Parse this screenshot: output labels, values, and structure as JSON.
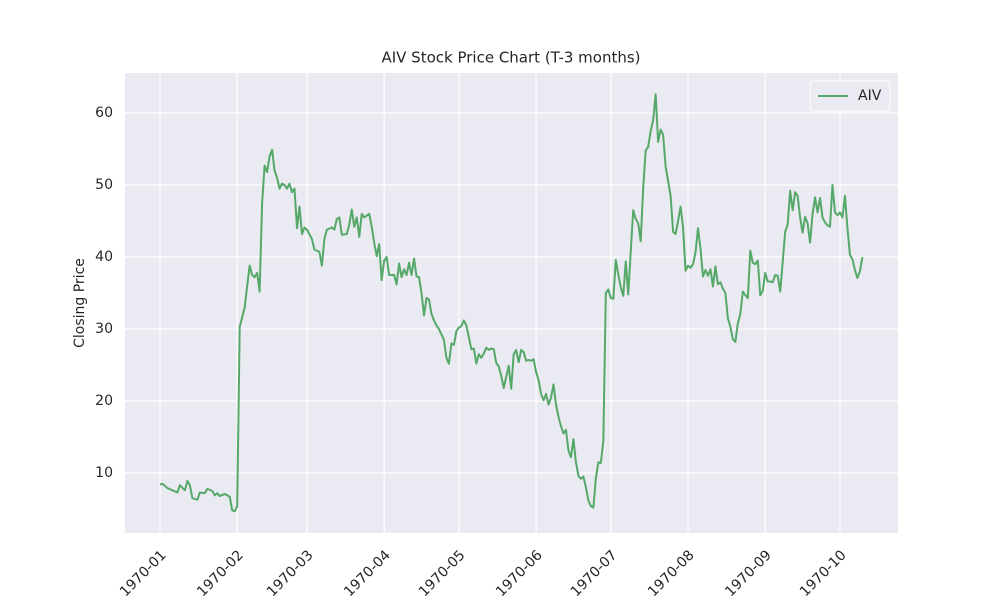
{
  "chart_data": {
    "type": "line",
    "title": "AIV Stock Price Chart (T-3 months)",
    "y_label": "Closing Price",
    "x": [
      0,
      1,
      3,
      5,
      7,
      8,
      10,
      11,
      12,
      13,
      15,
      16,
      18,
      19,
      21,
      22,
      23,
      24,
      26,
      28,
      29,
      30,
      31,
      32,
      34,
      35,
      36,
      37,
      38,
      39,
      40,
      41,
      42,
      43,
      44,
      45,
      46,
      47,
      48,
      49,
      50,
      51,
      52,
      53,
      54,
      55,
      56,
      57,
      58,
      59,
      61,
      62,
      63,
      64,
      65,
      66,
      67,
      69,
      70,
      71,
      72,
      73,
      75,
      76,
      77,
      78,
      79,
      80,
      81,
      82,
      84,
      85,
      86,
      87,
      88,
      89,
      90,
      91,
      92,
      94,
      95,
      96,
      97,
      98,
      99,
      100,
      101,
      102,
      103,
      104,
      105,
      106,
      107,
      108,
      109,
      110,
      111,
      112,
      114,
      115,
      116,
      117,
      118,
      119,
      120,
      121,
      122,
      123,
      125,
      126,
      127,
      128,
      129,
      130,
      131,
      132,
      133,
      134,
      135,
      136,
      137,
      138,
      140,
      141,
      142,
      143,
      144,
      145,
      146,
      147,
      148,
      149,
      150,
      151,
      152,
      153,
      154,
      155,
      156,
      157,
      158,
      159,
      160,
      161,
      162,
      163,
      164,
      165,
      166,
      167,
      168,
      169,
      170,
      171,
      172,
      173,
      174,
      175,
      176,
      177,
      178,
      179,
      180,
      181,
      182,
      183,
      184,
      185,
      186,
      187,
      188,
      189,
      190,
      191,
      192,
      193,
      194,
      195,
      196,
      197,
      198,
      199,
      200,
      201,
      202,
      203,
      205,
      206,
      207,
      208,
      209,
      210,
      211,
      212,
      213,
      214,
      215,
      216,
      217,
      218,
      219,
      220,
      221,
      222,
      223,
      224,
      225,
      226,
      227,
      228,
      229,
      230,
      231,
      232,
      233,
      234,
      235,
      236,
      237,
      238,
      239,
      240,
      241,
      242,
      243,
      244,
      245,
      246,
      247,
      248,
      249,
      250,
      251,
      252,
      253,
      254,
      255,
      256,
      257,
      258,
      259,
      260,
      261,
      262,
      263,
      264,
      265,
      266,
      267,
      268,
      269,
      270,
      271,
      272,
      273,
      274,
      275,
      276,
      277,
      278,
      279,
      280,
      281,
      282
    ],
    "series": [
      {
        "name": "AIV",
        "color": "#55a868",
        "values": [
          8.4,
          8.5,
          7.9,
          7.6,
          7.3,
          8.3,
          7.6,
          8.9,
          8.3,
          6.5,
          6.3,
          7.3,
          7.2,
          7.8,
          7.5,
          6.9,
          7.2,
          6.8,
          7.1,
          6.7,
          4.8,
          4.7,
          5.4,
          30.3,
          33,
          36,
          38.8,
          37.5,
          37.2,
          37.8,
          35.2,
          47.5,
          52.7,
          51.8,
          54,
          54.9,
          52,
          51,
          49.5,
          50.2,
          50,
          49.5,
          50.2,
          49,
          49.5,
          44,
          47,
          43.2,
          44.1,
          43.8,
          42.5,
          41,
          40.9,
          40.7,
          38.8,
          42.5,
          43.8,
          44.1,
          43.8,
          45.3,
          45.5,
          43.1,
          43.2,
          44.5,
          46.6,
          44.2,
          45.5,
          42.8,
          46,
          45.5,
          46,
          44.2,
          42,
          40.1,
          41.8,
          36.8,
          39.5,
          40,
          37.5,
          37.5,
          36.2,
          39.1,
          37.2,
          38.3,
          37.5,
          39.2,
          37.5,
          39.8,
          37.3,
          37.2,
          35,
          31.9,
          34.3,
          34.1,
          32.1,
          31.2,
          30.5,
          30,
          28.5,
          26,
          25.2,
          28,
          27.8,
          29.7,
          30.2,
          30.4,
          31.2,
          30.5,
          27.2,
          27.3,
          25.2,
          26.5,
          26,
          26.6,
          27.4,
          27.1,
          27.3,
          27.2,
          25.3,
          24.8,
          23.5,
          21.8,
          24.9,
          21.7,
          26.5,
          27.1,
          25.4,
          27.1,
          26.8,
          25.6,
          25.7,
          25.6,
          25.8,
          24,
          22.9,
          21,
          20.1,
          21,
          19.5,
          20.5,
          22.3,
          19.5,
          17.8,
          16.5,
          15.5,
          16,
          13.1,
          12.2,
          14.7,
          11.5,
          9.6,
          9.2,
          9.5,
          8,
          6.2,
          5.4,
          5.2,
          9.3,
          11.5,
          11.4,
          14.5,
          35,
          35.5,
          34.3,
          34.2,
          39.6,
          37.6,
          35.8,
          34.6,
          39.4,
          34.8,
          40.8,
          46.5,
          45.3,
          44.7,
          42.2,
          49.6,
          54.8,
          55.3,
          57.5,
          59,
          62.6,
          56,
          57.7,
          57,
          52.6,
          48.5,
          43.5,
          43.2,
          45,
          47,
          44.1,
          38.1,
          38.8,
          38.5,
          39,
          40.6,
          44,
          41.2,
          37.3,
          38.2,
          37.4,
          38.3,
          35.9,
          38.7,
          36.2,
          36.5,
          35.6,
          35,
          31.5,
          30.3,
          28.6,
          28.2,
          30.8,
          32.1,
          35.2,
          34.7,
          34.3,
          40.9,
          39.2,
          39,
          39.5,
          34.7,
          35.3,
          37.8,
          36.6,
          36.6,
          36.5,
          37.5,
          37.4,
          35.2,
          39.3,
          43.5,
          44.5,
          49.2,
          46.5,
          49,
          48.5,
          45.5,
          43.4,
          45.6,
          44.7,
          42,
          46,
          48.3,
          46.2,
          48.2,
          45.5,
          44.8,
          44.4,
          44.2,
          50,
          46.2,
          45.8,
          46.2,
          45.5,
          48.5,
          44,
          40.3,
          39.7,
          38.2,
          37.1,
          38,
          40
        ]
      }
    ],
    "xlim": [
      -14.05,
      296.3
    ],
    "xticks": [
      {
        "value": 0,
        "label": "1970-01"
      },
      {
        "value": 31,
        "label": "1970-02"
      },
      {
        "value": 59,
        "label": "1970-03"
      },
      {
        "value": 90,
        "label": "1970-04"
      },
      {
        "value": 120,
        "label": "1970-05"
      },
      {
        "value": 151,
        "label": "1970-06"
      },
      {
        "value": 181,
        "label": "1970-07"
      },
      {
        "value": 212,
        "label": "1970-08"
      },
      {
        "value": 243,
        "label": "1970-09"
      },
      {
        "value": 273,
        "label": "1970-10"
      }
    ],
    "ylim": [
      1.67,
      65.56
    ],
    "yticks": [
      10,
      20,
      30,
      40,
      50,
      60
    ],
    "grid": true,
    "legend": "upper right"
  }
}
